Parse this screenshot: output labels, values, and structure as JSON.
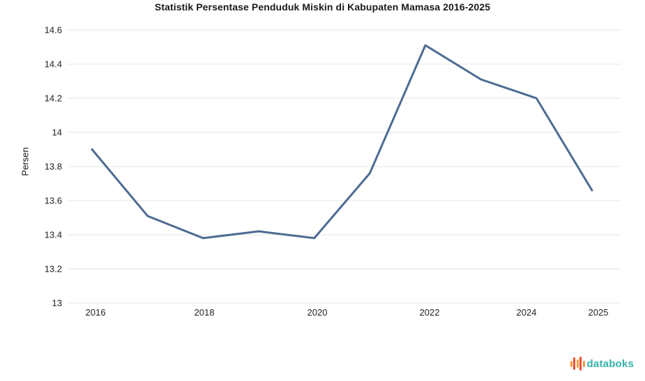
{
  "chart_data": {
    "type": "line",
    "title": "Statistik Persentase Penduduk Miskin di Kabupaten Mamasa 2016-2025",
    "ylabel": "Persen",
    "xlabel": "",
    "x": [
      2016,
      2017,
      2018,
      2019,
      2020,
      2021,
      2022,
      2023,
      2024,
      2025
    ],
    "values": [
      13.9,
      13.51,
      13.38,
      13.42,
      13.38,
      13.76,
      14.51,
      14.31,
      14.2,
      13.66
    ],
    "ylim": [
      13,
      14.6
    ],
    "ytick_labels": [
      "14.6",
      "14.4",
      "14.2",
      "14",
      "13.8",
      "13.6",
      "13.4",
      "13.2",
      "13"
    ],
    "xtick_labels": [
      "2016",
      "2018",
      "2020",
      "2022",
      "2024",
      "2025"
    ],
    "grid": true,
    "legend": "none",
    "line_color": "#4c6b92",
    "gridline_color": "#e6e6e6"
  },
  "branding": {
    "name": "databoks",
    "text_color": "#32b2ac",
    "icon_bar_colors": [
      "#f59c3c",
      "#e94e35",
      "#f59c3c",
      "#e94e35",
      "#f59c3c"
    ]
  }
}
